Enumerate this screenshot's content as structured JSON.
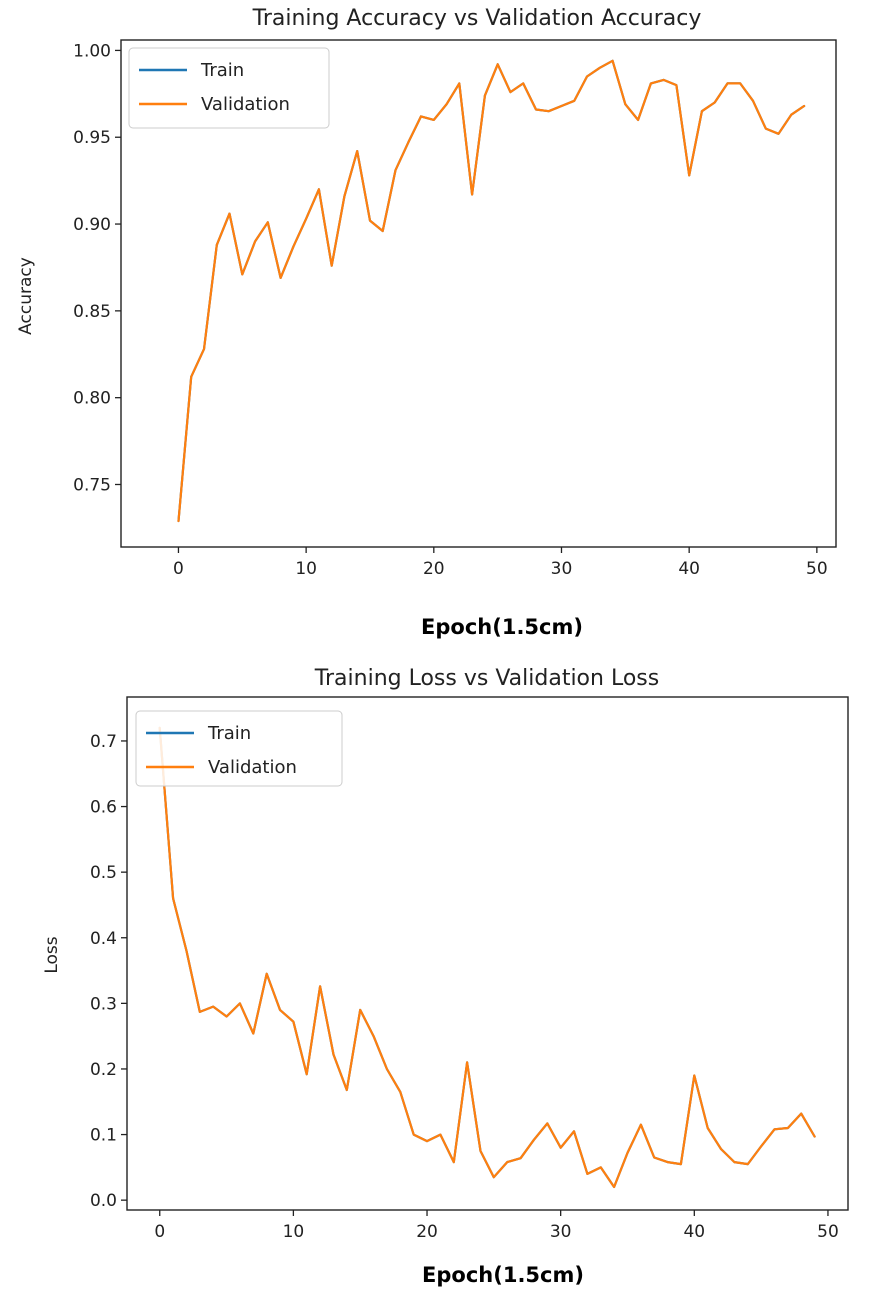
{
  "chart_data": [
    {
      "type": "line",
      "title": "Training Accuracy vs Validation Accuracy",
      "xlabel": "Epoch(1.5cm)",
      "ylabel": "Accuracy",
      "xlim": [
        -4.5,
        51.5
      ],
      "ylim": [
        0.714,
        1.006
      ],
      "xticks": [
        0,
        10,
        20,
        30,
        40,
        50
      ],
      "xtick_labels": [
        "0",
        "10",
        "20",
        "30",
        "40",
        "50"
      ],
      "yticks": [
        0.75,
        0.8,
        0.85,
        0.9,
        0.95,
        1.0
      ],
      "ytick_labels": [
        "0.75",
        "0.80",
        "0.85",
        "0.90",
        "0.95",
        "1.00"
      ],
      "legend": "top-left",
      "grid": false,
      "x": [
        0,
        1,
        2,
        3,
        4,
        5,
        6,
        7,
        8,
        9,
        10,
        11,
        12,
        13,
        14,
        15,
        16,
        17,
        18,
        19,
        20,
        21,
        22,
        23,
        24,
        25,
        26,
        27,
        28,
        29,
        30,
        31,
        32,
        33,
        34,
        35,
        36,
        37,
        38,
        39,
        40,
        41,
        42,
        43,
        44,
        45,
        46,
        47,
        48,
        49
      ],
      "series": [
        {
          "name": "Train",
          "color": "#1f77b4",
          "values": [
            0.729,
            0.812,
            0.828,
            0.888,
            0.906,
            0.871,
            0.89,
            0.901,
            0.869,
            0.887,
            0.903,
            0.92,
            0.876,
            0.916,
            0.942,
            0.902,
            0.896,
            0.931,
            0.947,
            0.962,
            0.96,
            0.969,
            0.981,
            0.917,
            0.974,
            0.992,
            0.976,
            0.981,
            0.966,
            0.965,
            0.968,
            0.971,
            0.985,
            0.99,
            0.994,
            0.969,
            0.96,
            0.981,
            0.983,
            0.98,
            0.928,
            0.965,
            0.97,
            0.981,
            0.981,
            0.971,
            0.955,
            0.952,
            0.963,
            0.968
          ]
        },
        {
          "name": "Validation",
          "color": "#ff7f0e",
          "values": [
            0.729,
            0.812,
            0.828,
            0.888,
            0.906,
            0.871,
            0.89,
            0.901,
            0.869,
            0.887,
            0.903,
            0.92,
            0.876,
            0.916,
            0.942,
            0.902,
            0.896,
            0.931,
            0.947,
            0.962,
            0.96,
            0.969,
            0.981,
            0.917,
            0.974,
            0.992,
            0.976,
            0.981,
            0.966,
            0.965,
            0.968,
            0.971,
            0.985,
            0.99,
            0.994,
            0.969,
            0.96,
            0.981,
            0.983,
            0.98,
            0.928,
            0.965,
            0.97,
            0.981,
            0.981,
            0.971,
            0.955,
            0.952,
            0.963,
            0.968
          ]
        }
      ]
    },
    {
      "type": "line",
      "title": "Training Loss vs Validation Loss",
      "xlabel": "Epoch(1.5cm)",
      "ylabel": "Loss",
      "xlim": [
        -2.45,
        51.5
      ],
      "ylim": [
        -0.015,
        0.767
      ],
      "xticks": [
        0,
        10,
        20,
        30,
        40,
        50
      ],
      "xtick_labels": [
        "0",
        "10",
        "20",
        "30",
        "40",
        "50"
      ],
      "yticks": [
        0.0,
        0.1,
        0.2,
        0.3,
        0.4,
        0.5,
        0.6,
        0.7
      ],
      "ytick_labels": [
        "0.0",
        "0.1",
        "0.2",
        "0.3",
        "0.4",
        "0.5",
        "0.6",
        "0.7"
      ],
      "legend": "top-left",
      "grid": false,
      "x": [
        0,
        1,
        2,
        3,
        4,
        5,
        6,
        7,
        8,
        9,
        10,
        11,
        12,
        13,
        14,
        15,
        16,
        17,
        18,
        19,
        20,
        21,
        22,
        23,
        24,
        25,
        26,
        27,
        28,
        29,
        30,
        31,
        32,
        33,
        34,
        35,
        36,
        37,
        38,
        39,
        40,
        41,
        42,
        43,
        44,
        45,
        46,
        47,
        48,
        49
      ],
      "series": [
        {
          "name": "Train",
          "color": "#1f77b4",
          "values": [
            0.72,
            0.46,
            0.38,
            0.287,
            0.295,
            0.28,
            0.3,
            0.254,
            0.345,
            0.29,
            0.272,
            0.192,
            0.326,
            0.222,
            0.168,
            0.29,
            0.25,
            0.2,
            0.165,
            0.1,
            0.09,
            0.1,
            0.058,
            0.21,
            0.075,
            0.035,
            0.058,
            0.064,
            0.092,
            0.117,
            0.08,
            0.105,
            0.04,
            0.05,
            0.02,
            0.072,
            0.115,
            0.065,
            0.058,
            0.055,
            0.19,
            0.11,
            0.078,
            0.058,
            0.055,
            0.082,
            0.108,
            0.11,
            0.132,
            0.097
          ]
        },
        {
          "name": "Validation",
          "color": "#ff7f0e",
          "values": [
            0.72,
            0.46,
            0.38,
            0.287,
            0.295,
            0.28,
            0.3,
            0.254,
            0.345,
            0.29,
            0.272,
            0.192,
            0.326,
            0.222,
            0.168,
            0.29,
            0.25,
            0.2,
            0.165,
            0.1,
            0.09,
            0.1,
            0.058,
            0.21,
            0.075,
            0.035,
            0.058,
            0.064,
            0.092,
            0.117,
            0.08,
            0.105,
            0.04,
            0.05,
            0.02,
            0.072,
            0.115,
            0.065,
            0.058,
            0.055,
            0.19,
            0.11,
            0.078,
            0.058,
            0.055,
            0.082,
            0.108,
            0.11,
            0.132,
            0.097
          ]
        }
      ]
    }
  ]
}
